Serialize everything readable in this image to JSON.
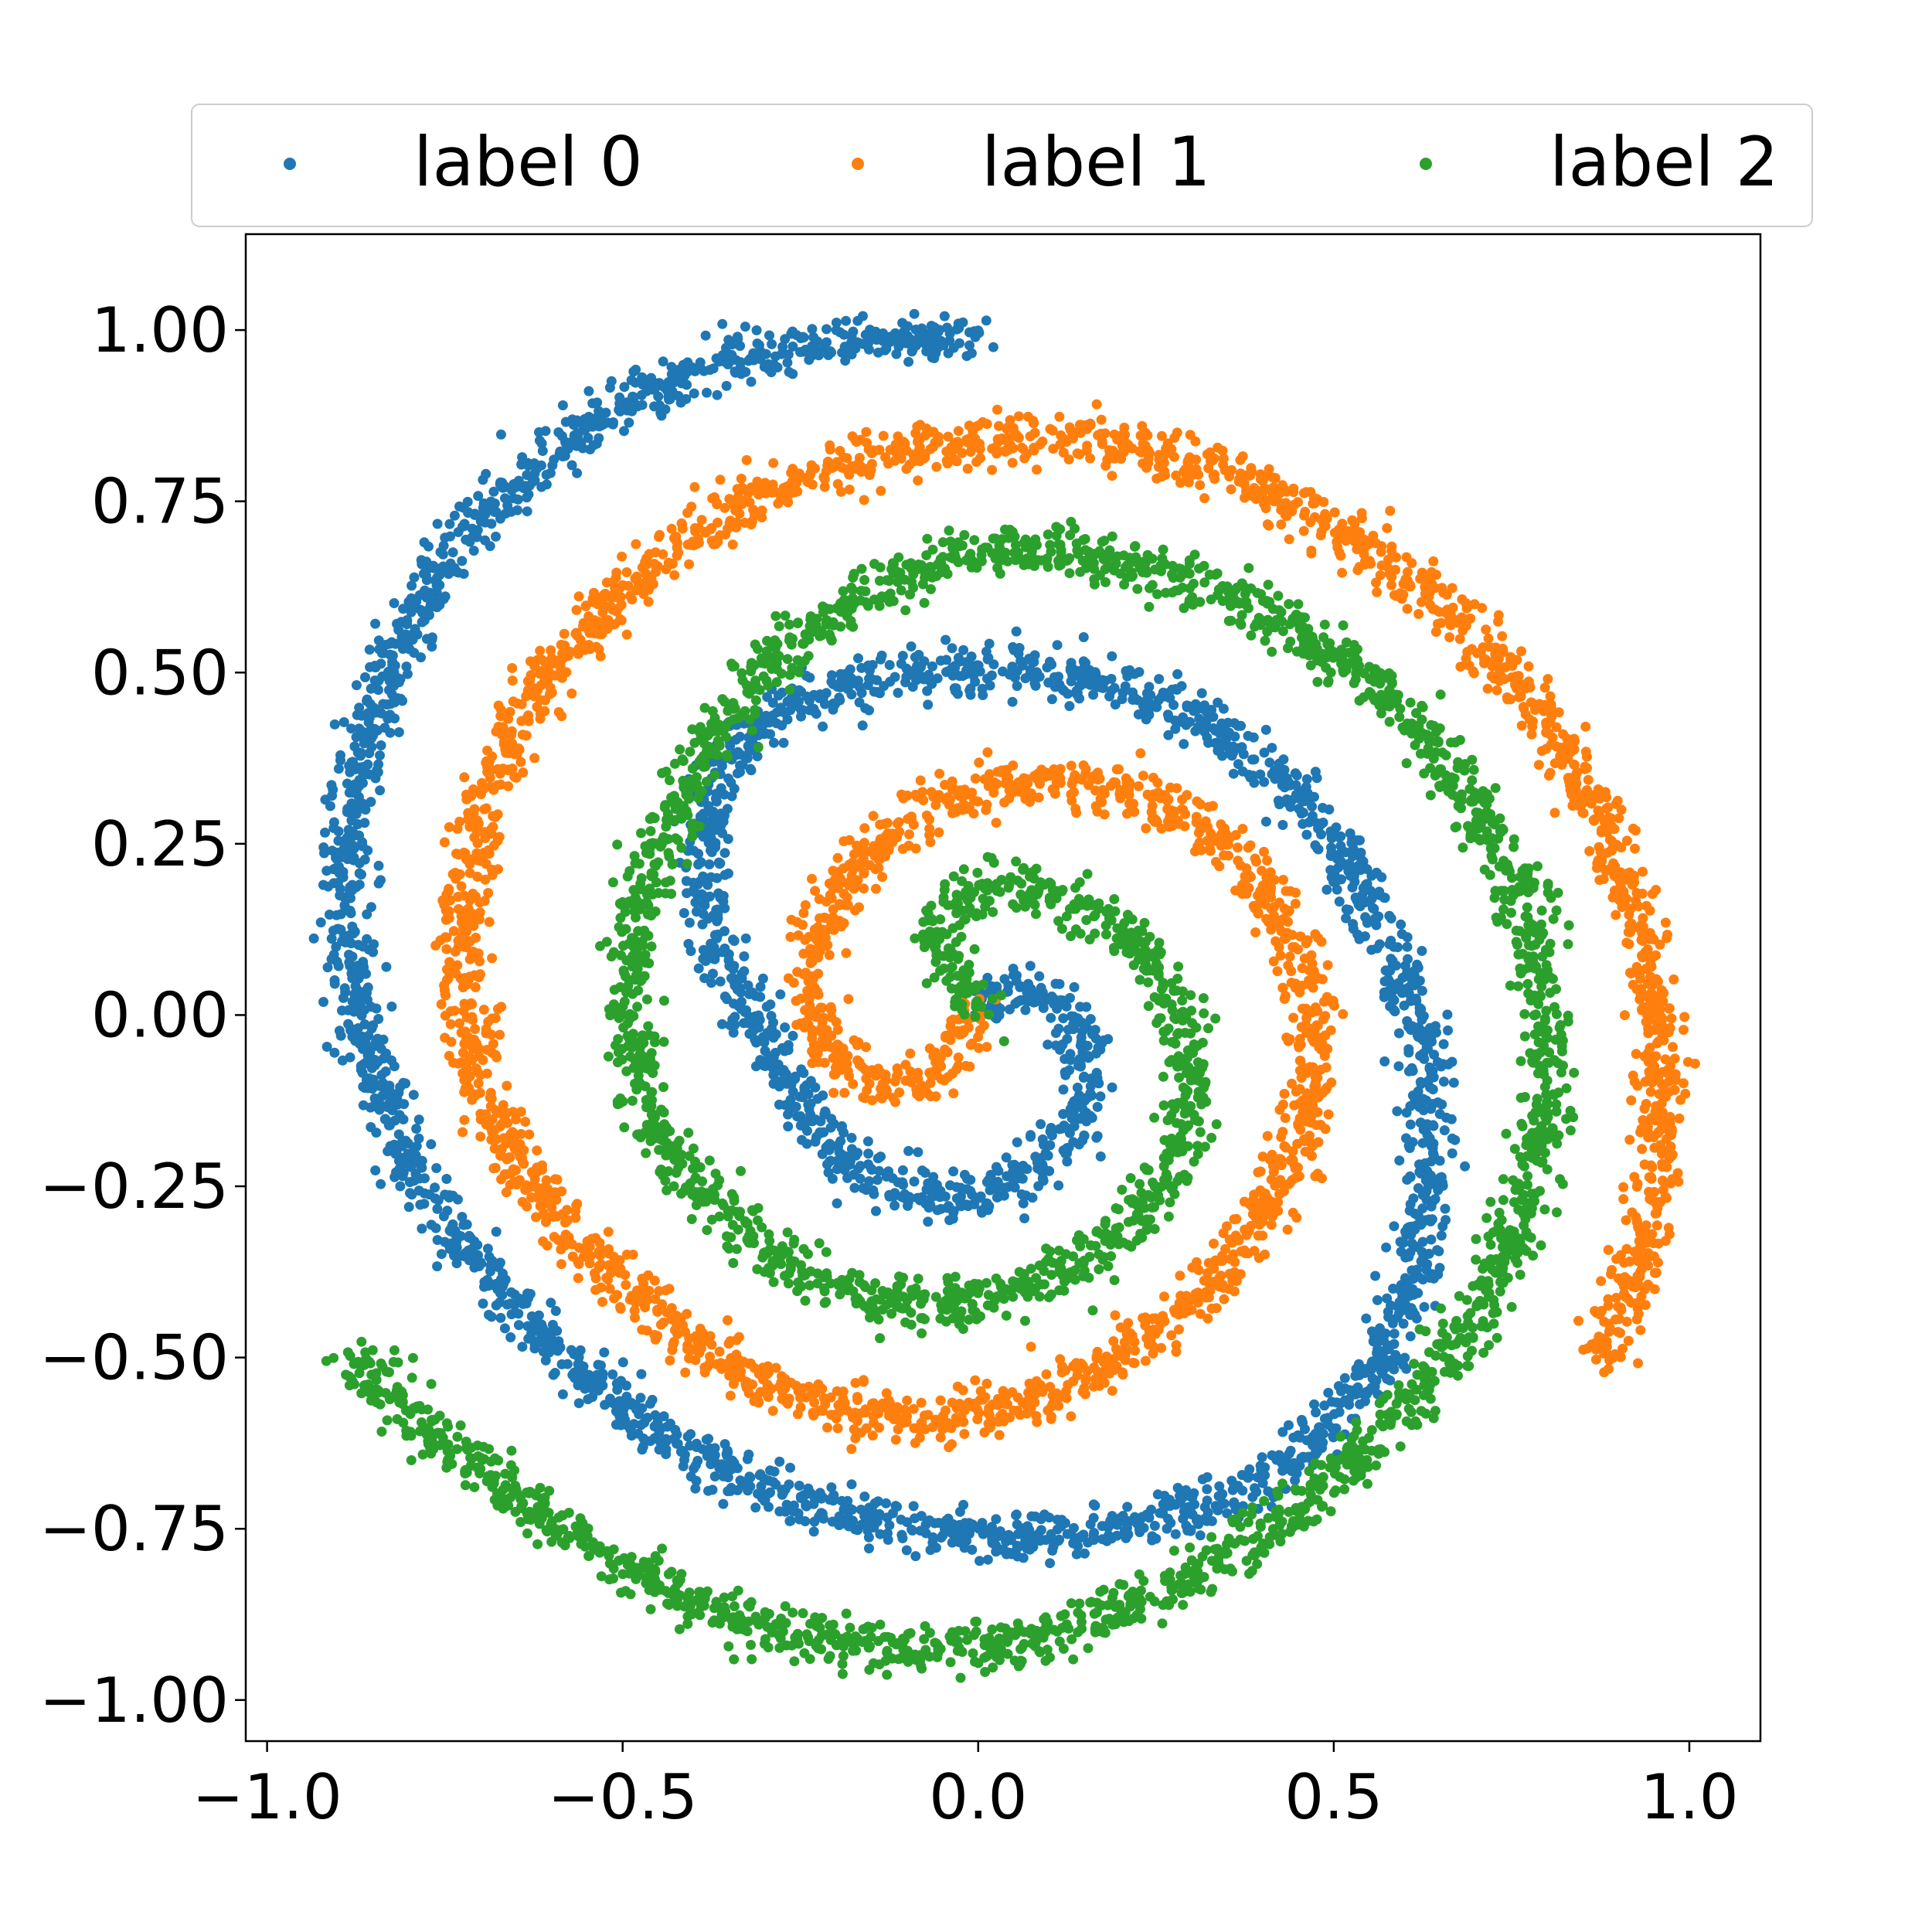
{
  "chart_data": {
    "type": "scatter",
    "title": "",
    "xlabel": "",
    "ylabel": "",
    "xlim": [
      -1.03,
      1.1
    ],
    "ylim": [
      -1.06,
      1.14
    ],
    "grid": false,
    "legend": {
      "placement": "top, above plot, 3 columns",
      "entries": [
        "label 0",
        "label 1",
        "label 2"
      ]
    },
    "x_ticks": [
      -1.0,
      -0.5,
      0.0,
      0.5,
      1.0
    ],
    "x_tick_labels": [
      "−1.0",
      "−0.5",
      "0.0",
      "0.5",
      "1.0"
    ],
    "y_ticks": [
      1.0,
      0.75,
      0.5,
      0.25,
      0.0,
      -0.25,
      -0.5,
      -0.75,
      -1.0
    ],
    "y_tick_labels": [
      "1.00",
      "0.75",
      "0.50",
      "0.25",
      "0.00",
      "−0.25",
      "−0.50",
      "−0.75",
      "−1.00"
    ],
    "series": [
      {
        "name": "label 0",
        "color": "#1f77b4",
        "description": "three-arm spiral, arm starting at center and ending near (0.0, 0.98)",
        "x": [
          0.0,
          0.05,
          0.12,
          0.16,
          0.14,
          0.06,
          -0.04,
          -0.13,
          -0.21,
          -0.27,
          -0.33,
          -0.38,
          -0.39,
          -0.35,
          -0.27,
          -0.15,
          0.0,
          0.15,
          0.3,
          0.42,
          0.52,
          0.59,
          0.63,
          0.64,
          0.62,
          0.57,
          0.5,
          0.4,
          0.28,
          0.15,
          0.0,
          -0.15,
          -0.3,
          -0.45,
          -0.58,
          -0.7,
          -0.8,
          -0.86,
          -0.89,
          -0.89,
          -0.86,
          -0.8,
          -0.72,
          -0.62,
          -0.5,
          -0.37,
          -0.22,
          -0.07,
          0.0
        ],
        "y": [
          0.0,
          0.05,
          0.01,
          -0.08,
          -0.17,
          -0.24,
          -0.27,
          -0.25,
          -0.19,
          -0.1,
          0.02,
          0.15,
          0.27,
          0.38,
          0.45,
          0.49,
          0.51,
          0.49,
          0.44,
          0.35,
          0.22,
          0.08,
          -0.07,
          -0.22,
          -0.36,
          -0.49,
          -0.6,
          -0.68,
          -0.73,
          -0.76,
          -0.76,
          -0.74,
          -0.69,
          -0.61,
          -0.5,
          -0.37,
          -0.22,
          -0.06,
          0.1,
          0.26,
          0.42,
          0.57,
          0.7,
          0.81,
          0.89,
          0.95,
          0.98,
          0.99,
          0.98
        ]
      },
      {
        "name": "label 1",
        "color": "#ff7f0e",
        "description": "three-arm spiral, arm starting at center and ending near (0.87, -0.51)",
        "x": [
          0.0,
          -0.04,
          -0.1,
          -0.16,
          -0.22,
          -0.24,
          -0.22,
          -0.15,
          -0.06,
          0.05,
          0.16,
          0.27,
          0.36,
          0.43,
          0.47,
          0.47,
          0.44,
          0.38,
          0.29,
          0.18,
          0.06,
          -0.06,
          -0.19,
          -0.32,
          -0.44,
          -0.55,
          -0.65,
          -0.7,
          -0.73,
          -0.72,
          -0.68,
          -0.62,
          -0.53,
          -0.42,
          -0.29,
          -0.14,
          0.0,
          0.14,
          0.29,
          0.42,
          0.55,
          0.67,
          0.77,
          0.85,
          0.91,
          0.95,
          0.96,
          0.95,
          0.92,
          0.87
        ],
        "y": [
          0.0,
          -0.07,
          -0.11,
          -0.1,
          -0.04,
          0.05,
          0.15,
          0.24,
          0.31,
          0.34,
          0.34,
          0.3,
          0.24,
          0.14,
          0.03,
          -0.1,
          -0.22,
          -0.33,
          -0.43,
          -0.51,
          -0.57,
          -0.59,
          -0.58,
          -0.53,
          -0.45,
          -0.35,
          -0.22,
          -0.09,
          0.06,
          0.21,
          0.35,
          0.48,
          0.59,
          0.69,
          0.77,
          0.82,
          0.84,
          0.84,
          0.81,
          0.76,
          0.68,
          0.58,
          0.47,
          0.34,
          0.2,
          0.05,
          -0.1,
          -0.25,
          -0.39,
          -0.51
        ]
      },
      {
        "name": "label 2",
        "color": "#2ca02c",
        "description": "three-arm spiral, arm starting at center and ending near (-0.89, -0.50)",
        "x": [
          0.0,
          -0.03,
          -0.06,
          -0.05,
          0.0,
          0.07,
          0.15,
          0.22,
          0.28,
          0.3,
          0.29,
          0.25,
          0.18,
          0.09,
          -0.01,
          -0.12,
          -0.23,
          -0.33,
          -0.41,
          -0.47,
          -0.49,
          -0.48,
          -0.44,
          -0.37,
          -0.28,
          -0.17,
          -0.04,
          0.08,
          0.21,
          0.34,
          0.46,
          0.56,
          0.66,
          0.73,
          0.78,
          0.8,
          0.79,
          0.75,
          0.68,
          0.59,
          0.47,
          0.34,
          0.2,
          0.05,
          -0.1,
          -0.25,
          -0.4,
          -0.54,
          -0.67,
          -0.79,
          -0.89
        ],
        "y": [
          0.0,
          0.05,
          0.1,
          0.15,
          0.18,
          0.19,
          0.16,
          0.1,
          0.02,
          -0.08,
          -0.17,
          -0.26,
          -0.34,
          -0.39,
          -0.42,
          -0.42,
          -0.39,
          -0.32,
          -0.23,
          -0.12,
          0.01,
          0.14,
          0.28,
          0.41,
          0.53,
          0.61,
          0.67,
          0.68,
          0.66,
          0.62,
          0.56,
          0.48,
          0.37,
          0.25,
          0.12,
          -0.03,
          -0.18,
          -0.33,
          -0.47,
          -0.59,
          -0.7,
          -0.8,
          -0.87,
          -0.92,
          -0.93,
          -0.91,
          -0.86,
          -0.78,
          -0.69,
          -0.59,
          -0.5
        ]
      }
    ]
  }
}
